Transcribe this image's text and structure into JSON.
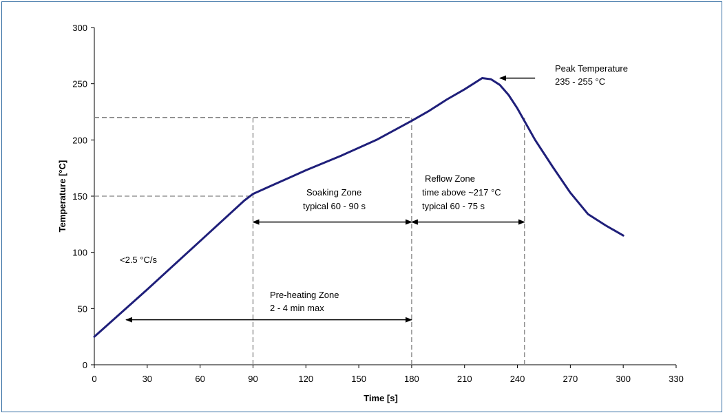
{
  "chart_data": {
    "type": "line",
    "title": "",
    "xlabel": "Time [s]",
    "ylabel": "Temperature [°C]",
    "xlim": [
      0,
      330
    ],
    "ylim": [
      0,
      300
    ],
    "xticks": [
      0,
      30,
      60,
      90,
      120,
      150,
      180,
      210,
      240,
      270,
      300,
      330
    ],
    "yticks": [
      0,
      50,
      100,
      150,
      200,
      250,
      300
    ],
    "grid": false,
    "legend": "none",
    "line_color": "#1f1f7a",
    "series": [
      {
        "x": [
          0,
          30,
          60,
          85,
          90,
          100,
          110,
          120,
          140,
          160,
          180,
          190,
          200,
          210,
          215,
          220,
          225,
          230,
          235,
          240,
          250,
          260,
          270,
          280,
          290,
          300
        ],
        "y": [
          25,
          67,
          110,
          146,
          152,
          159,
          166,
          173,
          186,
          200,
          217,
          226,
          236,
          245,
          250,
          255,
          254,
          249,
          240,
          228,
          200,
          176,
          153,
          134,
          124,
          115
        ]
      }
    ],
    "reference_lines": [
      {
        "y": 150,
        "x_end": 90
      },
      {
        "y": 220,
        "x_end": 180
      },
      {
        "x": 90
      },
      {
        "x": 180
      },
      {
        "x": 244
      }
    ],
    "arrows": [
      {
        "x1": 90,
        "x2": 180,
        "y": 127,
        "both": true
      },
      {
        "x1": 180,
        "x2": 244,
        "y": 127,
        "both": true
      },
      {
        "x1": 18,
        "x2": 180,
        "y": 40,
        "both": true
      },
      {
        "x1": 250,
        "x2": 230,
        "y": 255,
        "both": false
      }
    ],
    "annotations": {
      "soaking_1": "Soaking Zone",
      "soaking_2": "typical 60 - 90 s",
      "reflow_1": "Reflow Zone",
      "reflow_2": "time above ~217 °C",
      "reflow_3": "typical 60 - 75 s",
      "preheat_1": "Pre-heating Zone",
      "preheat_2": "2 - 4 min max",
      "peak_1": "Peak Temperature",
      "peak_2": "235 - 255 °C",
      "ramp": "<2.5 °C/s"
    }
  }
}
